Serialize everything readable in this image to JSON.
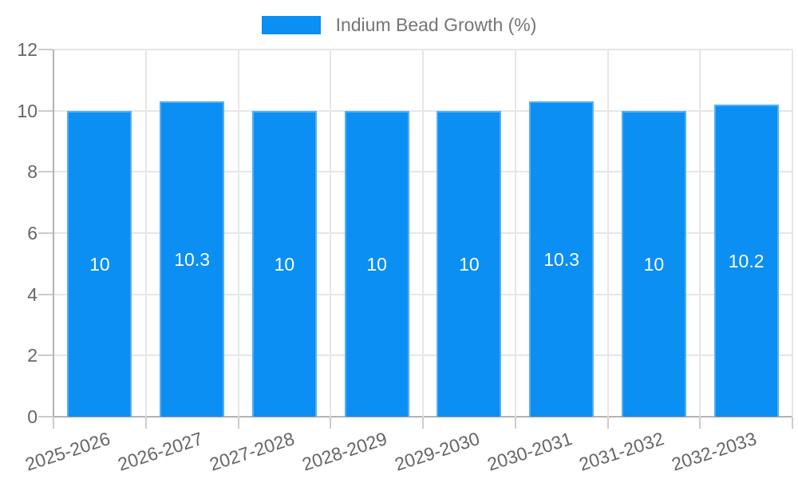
{
  "chart_data": {
    "type": "bar",
    "title": "",
    "legend": {
      "label": "Indium Bead Growth (%)",
      "position": "top-center"
    },
    "categories": [
      "2025-2026",
      "2026-2027",
      "2027-2028",
      "2028-2029",
      "2029-2030",
      "2030-2031",
      "2031-2032",
      "2032-2033"
    ],
    "values": [
      10,
      10.3,
      10,
      10,
      10,
      10.3,
      10,
      10.2
    ],
    "value_labels": [
      "10",
      "10.3",
      "10",
      "10",
      "10",
      "10.3",
      "10",
      "10.2"
    ],
    "xlabel": "",
    "ylabel": "",
    "ylim": [
      0,
      12
    ],
    "yticks": [
      0,
      2,
      4,
      6,
      8,
      10,
      12
    ],
    "grid": true,
    "x_label_rotation_deg": -18,
    "colors": {
      "bar_fill": "#0b8ff2",
      "bar_border": "#56adf6",
      "grid": "#e6e6e6",
      "axis": "#b3b3b3",
      "tick": "#cccccc",
      "axis_text": "#666666",
      "legend_text": "#757575",
      "value_text": "#ffffff"
    }
  }
}
